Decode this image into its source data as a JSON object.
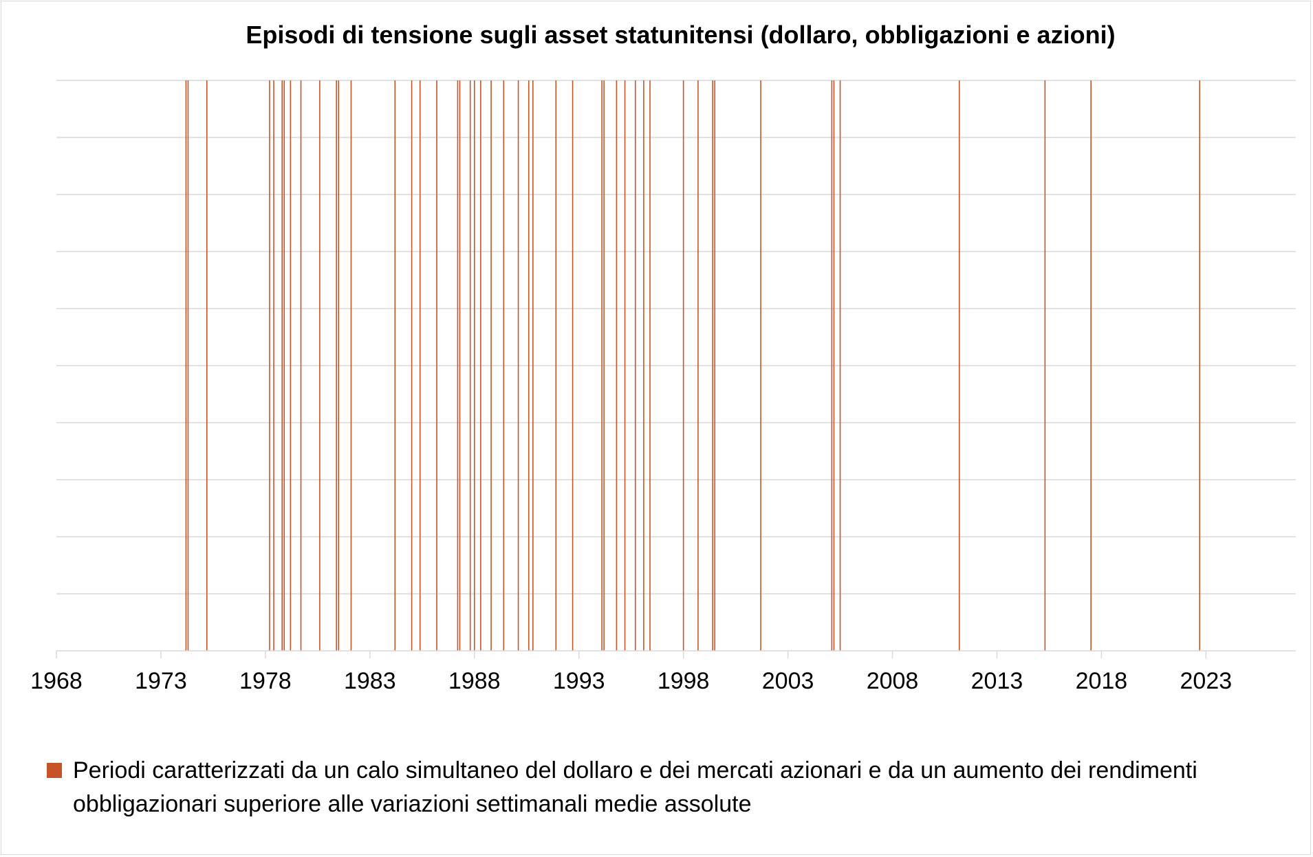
{
  "chart_data": {
    "type": "bar",
    "title": "Episodi di tensione sugli asset statunitensi (dollaro, obbligazioni e azioni)",
    "xlabel": "",
    "ylabel": "",
    "x_ticks": [
      1968,
      1973,
      1978,
      1983,
      1988,
      1993,
      1998,
      2003,
      2008,
      2013,
      2018,
      2023
    ],
    "xlim": [
      1968,
      2027.3
    ],
    "grid": true,
    "legend_position": "bottom",
    "series": [
      {
        "name": "Periodi caratterizzati da un calo simultaneo del dollaro e dei mercati azionari e da un aumento dei rendimenti obbligazionari superiore alle variazioni settimanali medie assolute",
        "color": "#C65428",
        "episodes": [
          1974.2,
          1974.3,
          1975.2,
          1978.2,
          1978.4,
          1978.8,
          1978.9,
          1979.2,
          1979.7,
          1980.6,
          1981.4,
          1981.5,
          1982.1,
          1984.2,
          1985.0,
          1985.4,
          1986.2,
          1987.2,
          1987.3,
          1987.8,
          1988.0,
          1988.3,
          1988.8,
          1989.4,
          1990.1,
          1990.6,
          1990.8,
          1991.9,
          1992.7,
          1994.1,
          1994.2,
          1994.8,
          1995.2,
          1995.7,
          1996.1,
          1996.4,
          1998.0,
          1998.7,
          1999.4,
          1999.5,
          2001.7,
          2005.1,
          2005.2,
          2005.5,
          2011.2,
          2015.3,
          2017.5,
          2022.7
        ]
      }
    ]
  },
  "legend": {
    "label": "Periodi caratterizzati da un calo simultaneo del dollaro e dei mercati azionari e da un aumento dei rendimenti obbligazionari superiore alle variazioni settimanali medie assolute",
    "color": "#C65428"
  }
}
